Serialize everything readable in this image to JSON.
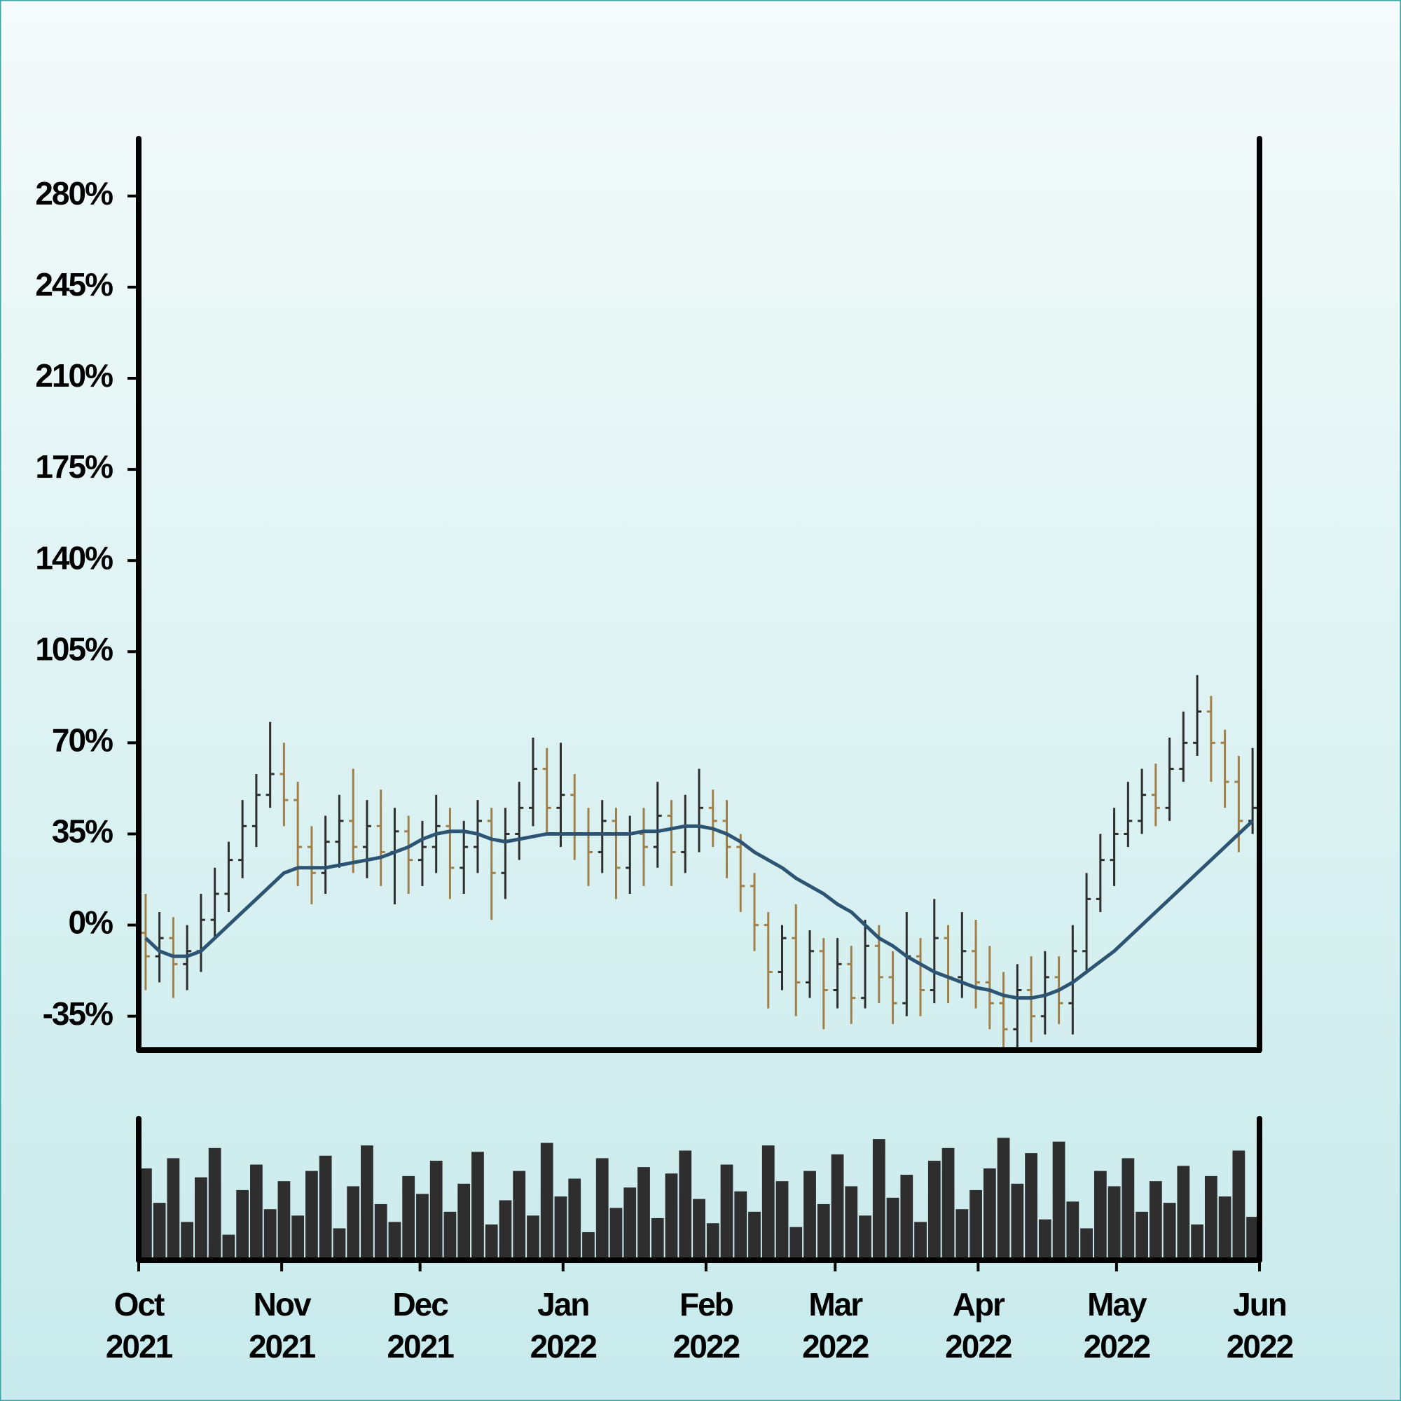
{
  "chart_data": {
    "type": "ohlc",
    "xlim": [
      "2021-10",
      "2022-06"
    ],
    "xticks": [
      {
        "value": "2021-10",
        "label": "Oct 2021"
      },
      {
        "value": "2021-11",
        "label": "Nov 2021"
      },
      {
        "value": "2021-12",
        "label": "Dec 2021"
      },
      {
        "value": "2022-01",
        "label": "Jan 2022"
      },
      {
        "value": "2022-02",
        "label": "Feb 2022"
      },
      {
        "value": "2022-03",
        "label": "Mar 2022"
      },
      {
        "value": "2022-04",
        "label": "Apr 2022"
      },
      {
        "value": "2022-05",
        "label": "May 2022"
      },
      {
        "value": "2022-06",
        "label": "Jun 2022"
      }
    ],
    "ylim": [
      -48,
      302
    ],
    "yticks": [
      {
        "value": -35,
        "label": "-35%"
      },
      {
        "value": 0,
        "label": "0%"
      },
      {
        "value": 35,
        "label": "35%"
      },
      {
        "value": 70,
        "label": "70%"
      },
      {
        "value": 105,
        "label": "105%"
      },
      {
        "value": 140,
        "label": "140%"
      },
      {
        "value": 175,
        "label": "175%"
      },
      {
        "value": 210,
        "label": "210%"
      },
      {
        "value": 245,
        "label": "245%"
      },
      {
        "value": 280,
        "label": "280%"
      }
    ],
    "up_color": "#2e2e2e",
    "down_color": "#a0804a",
    "open": [
      -3,
      -12,
      -5,
      -15,
      -10,
      2,
      12,
      25,
      38,
      50,
      58,
      48,
      30,
      20,
      32,
      40,
      30,
      38,
      28,
      36,
      25,
      30,
      38,
      22,
      30,
      40,
      20,
      35,
      45,
      60,
      45,
      50,
      35,
      28,
      40,
      22,
      35,
      30,
      42,
      28,
      38,
      45,
      40,
      30,
      15,
      0,
      -18,
      -5,
      -22,
      -10,
      -25,
      -15,
      -28,
      -8,
      -20,
      -30,
      -12,
      -25,
      -5,
      -20,
      -10,
      -22,
      -30,
      -40,
      -25,
      -35,
      -20,
      -30,
      -10,
      10,
      25,
      35,
      40,
      50,
      45,
      60,
      70,
      82,
      70,
      55,
      40
    ],
    "high": [
      12,
      5,
      3,
      0,
      12,
      22,
      32,
      48,
      58,
      78,
      70,
      55,
      38,
      42,
      50,
      60,
      48,
      52,
      45,
      42,
      40,
      50,
      45,
      40,
      48,
      45,
      45,
      55,
      72,
      68,
      70,
      58,
      45,
      48,
      45,
      42,
      45,
      55,
      48,
      50,
      60,
      52,
      48,
      35,
      20,
      5,
      0,
      8,
      -2,
      -5,
      -5,
      -8,
      2,
      0,
      -10,
      5,
      -5,
      10,
      0,
      5,
      2,
      -8,
      -18,
      -15,
      -12,
      -10,
      -12,
      0,
      20,
      35,
      45,
      55,
      60,
      62,
      72,
      82,
      96,
      88,
      75,
      65,
      68
    ],
    "low": [
      -25,
      -22,
      -28,
      -25,
      -18,
      -5,
      5,
      18,
      30,
      45,
      38,
      15,
      8,
      12,
      22,
      20,
      18,
      15,
      8,
      12,
      15,
      20,
      10,
      12,
      20,
      2,
      10,
      25,
      38,
      35,
      30,
      25,
      15,
      20,
      10,
      12,
      15,
      22,
      15,
      20,
      28,
      30,
      18,
      5,
      -10,
      -32,
      -25,
      -35,
      -28,
      -40,
      -32,
      -38,
      -32,
      -30,
      -38,
      -35,
      -35,
      -30,
      -30,
      -28,
      -32,
      -40,
      -48,
      -48,
      -45,
      -42,
      -38,
      -42,
      -18,
      5,
      15,
      30,
      35,
      38,
      40,
      55,
      65,
      55,
      45,
      28,
      35
    ],
    "close": [
      -12,
      -5,
      -15,
      -10,
      2,
      12,
      25,
      38,
      50,
      58,
      48,
      30,
      20,
      32,
      40,
      30,
      38,
      28,
      36,
      25,
      30,
      38,
      22,
      30,
      40,
      20,
      35,
      45,
      60,
      45,
      50,
      35,
      28,
      40,
      22,
      35,
      30,
      42,
      28,
      38,
      45,
      40,
      30,
      15,
      0,
      -18,
      -5,
      -22,
      -10,
      -25,
      -15,
      -28,
      -8,
      -20,
      -30,
      -12,
      -25,
      -5,
      -20,
      -10,
      -22,
      -30,
      -40,
      -25,
      -35,
      -20,
      -30,
      -10,
      10,
      25,
      35,
      40,
      50,
      45,
      60,
      70,
      82,
      70,
      55,
      40,
      45
    ],
    "moving_average": {
      "color": "#2d5573",
      "values": [
        -5,
        -10,
        -12,
        -12,
        -10,
        -5,
        0,
        5,
        10,
        15,
        20,
        22,
        22,
        22,
        23,
        24,
        25,
        26,
        28,
        30,
        33,
        35,
        36,
        36,
        35,
        33,
        32,
        33,
        34,
        35,
        35,
        35,
        35,
        35,
        35,
        35,
        36,
        36,
        37,
        38,
        38,
        37,
        35,
        32,
        28,
        25,
        22,
        18,
        15,
        12,
        8,
        5,
        0,
        -5,
        -8,
        -12,
        -15,
        -18,
        -20,
        -22,
        -24,
        -25,
        -27,
        -28,
        -28,
        -27,
        -25,
        -22,
        -18,
        -14,
        -10,
        -5,
        0,
        5,
        10,
        15,
        20,
        25,
        30,
        35,
        40
      ]
    },
    "volume": {
      "color": "#2e2e2e",
      "ylim": [
        0,
        100
      ],
      "values": [
        72,
        45,
        80,
        30,
        65,
        88,
        20,
        55,
        75,
        40,
        62,
        35,
        70,
        82,
        25,
        58,
        90,
        44,
        30,
        66,
        52,
        78,
        38,
        60,
        85,
        28,
        47,
        70,
        35,
        92,
        50,
        64,
        22,
        80,
        41,
        57,
        73,
        33,
        68,
        86,
        48,
        29,
        75,
        54,
        38,
        90,
        62,
        26,
        70,
        44,
        83,
        58,
        35,
        95,
        49,
        67,
        30,
        78,
        88,
        40,
        55,
        72,
        96,
        60,
        84,
        32,
        93,
        46,
        25,
        70,
        58,
        80,
        38,
        62,
        45,
        74,
        28,
        66,
        50,
        86,
        34
      ]
    }
  }
}
